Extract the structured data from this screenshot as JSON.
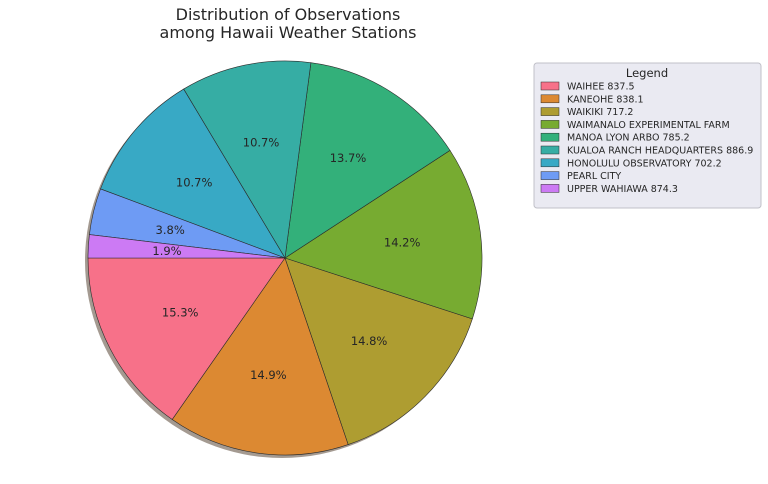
{
  "chart_data": {
    "type": "pie",
    "title": [
      "Distribution of Observations",
      "among Hawaii Weather Stations"
    ],
    "startangle_deg": 180,
    "shadow": true,
    "legend": {
      "title": "Legend",
      "placement": "upper-right-outside"
    },
    "slices": [
      {
        "label": "WAIHEE 837.5",
        "percent": 15.3,
        "pct_label": "15.3%",
        "color": "#f77189"
      },
      {
        "label": "KANEOHE 838.1",
        "percent": 14.9,
        "pct_label": "14.9%",
        "color": "#dc8932"
      },
      {
        "label": "WAIKIKI 717.2",
        "percent": 14.8,
        "pct_label": "14.8%",
        "color": "#ae9d31"
      },
      {
        "label": "WAIMANALO EXPERIMENTAL FARM",
        "percent": 14.2,
        "pct_label": "14.2%",
        "color": "#77ab31"
      },
      {
        "label": "MANOA LYON ARBO 785.2",
        "percent": 13.7,
        "pct_label": "13.7%",
        "color": "#33b07a"
      },
      {
        "label": "KUALOA RANCH HEADQUARTERS 886.9",
        "percent": 10.7,
        "pct_label": "10.7%",
        "color": "#36ada4"
      },
      {
        "label": "HONOLULU OBSERVATORY 702.2",
        "percent": 10.7,
        "pct_label": "10.7%",
        "color": "#38a9c5"
      },
      {
        "label": "PEARL CITY",
        "percent": 3.8,
        "pct_label": "3.8%",
        "color": "#6e9bf4"
      },
      {
        "label": "UPPER WAHIAWA 874.3",
        "percent": 1.9,
        "pct_label": "1.9%",
        "color": "#cc7af4"
      }
    ]
  }
}
